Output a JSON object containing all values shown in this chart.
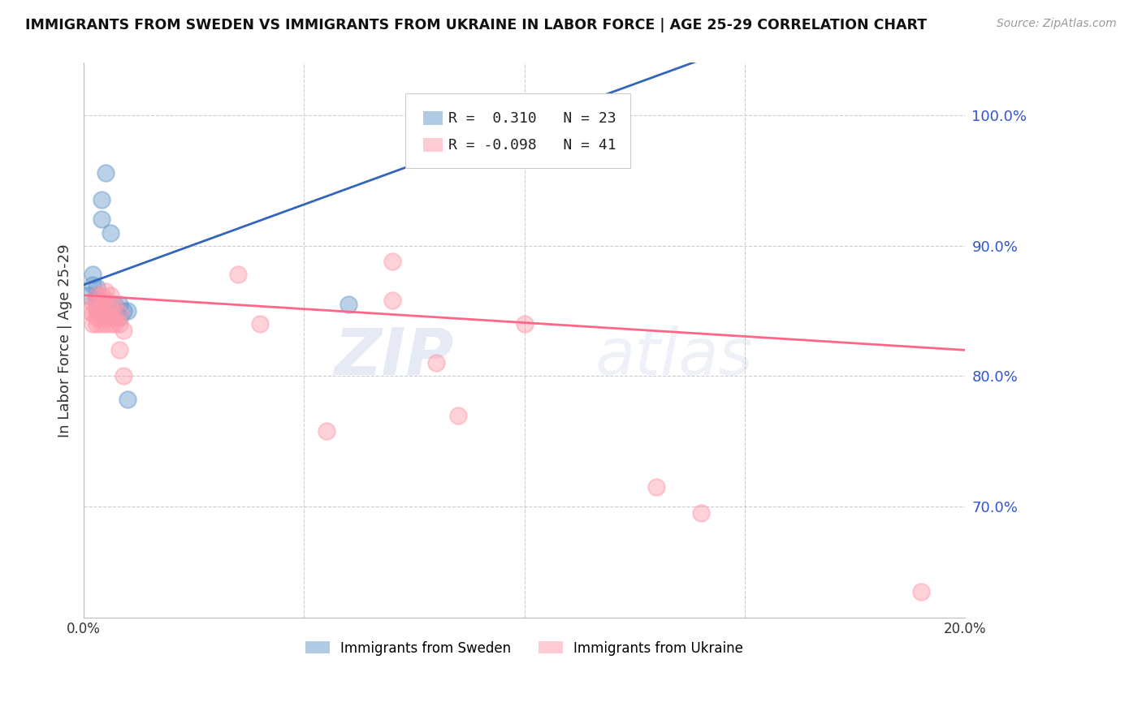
{
  "title": "IMMIGRANTS FROM SWEDEN VS IMMIGRANTS FROM UKRAINE IN LABOR FORCE | AGE 25-29 CORRELATION CHART",
  "source": "Source: ZipAtlas.com",
  "ylabel": "In Labor Force | Age 25-29",
  "ylabel_right_ticks": [
    "100.0%",
    "90.0%",
    "80.0%",
    "70.0%"
  ],
  "ylabel_right_values": [
    1.0,
    0.9,
    0.8,
    0.7
  ],
  "xlim": [
    0.0,
    0.2
  ],
  "ylim": [
    0.615,
    1.04
  ],
  "sweden_R": 0.31,
  "sweden_N": 23,
  "ukraine_R": -0.098,
  "ukraine_N": 41,
  "sweden_color": "#6699CC",
  "ukraine_color": "#FF99AA",
  "line_sweden_color": "#3366BB",
  "line_ukraine_color": "#FF6688",
  "grid_color": "#CCCCCC",
  "background_color": "#FFFFFF",
  "watermark_zip": "ZIP",
  "watermark_atlas": "atlas",
  "sweden_points_x": [
    0.001,
    0.002,
    0.002,
    0.003,
    0.003,
    0.003,
    0.003,
    0.004,
    0.004,
    0.004,
    0.004,
    0.005,
    0.005,
    0.005,
    0.006,
    0.007,
    0.008,
    0.008,
    0.009,
    0.01,
    0.01,
    0.06,
    0.1
  ],
  "sweden_points_y": [
    0.862,
    0.87,
    0.878,
    0.852,
    0.858,
    0.862,
    0.868,
    0.85,
    0.855,
    0.92,
    0.935,
    0.845,
    0.852,
    0.956,
    0.91,
    0.855,
    0.845,
    0.855,
    0.85,
    0.85,
    0.782,
    0.855,
    0.972
  ],
  "ukraine_points_x": [
    0.001,
    0.002,
    0.002,
    0.002,
    0.003,
    0.003,
    0.003,
    0.003,
    0.003,
    0.004,
    0.004,
    0.004,
    0.004,
    0.005,
    0.005,
    0.005,
    0.005,
    0.005,
    0.006,
    0.006,
    0.006,
    0.006,
    0.007,
    0.007,
    0.007,
    0.008,
    0.008,
    0.008,
    0.009,
    0.009,
    0.035,
    0.04,
    0.055,
    0.07,
    0.07,
    0.08,
    0.085,
    0.1,
    0.13,
    0.14,
    0.19
  ],
  "ukraine_points_y": [
    0.85,
    0.84,
    0.848,
    0.856,
    0.84,
    0.845,
    0.85,
    0.855,
    0.862,
    0.84,
    0.845,
    0.853,
    0.862,
    0.84,
    0.845,
    0.852,
    0.858,
    0.865,
    0.84,
    0.845,
    0.852,
    0.862,
    0.84,
    0.845,
    0.855,
    0.84,
    0.848,
    0.82,
    0.8,
    0.835,
    0.878,
    0.84,
    0.758,
    0.888,
    0.858,
    0.81,
    0.77,
    0.84,
    0.715,
    0.695,
    0.635
  ],
  "xtick_positions": [
    0.0,
    0.05,
    0.1,
    0.15,
    0.2
  ],
  "xtick_labels": [
    "0.0%",
    "",
    "",
    "",
    "20.0%"
  ]
}
